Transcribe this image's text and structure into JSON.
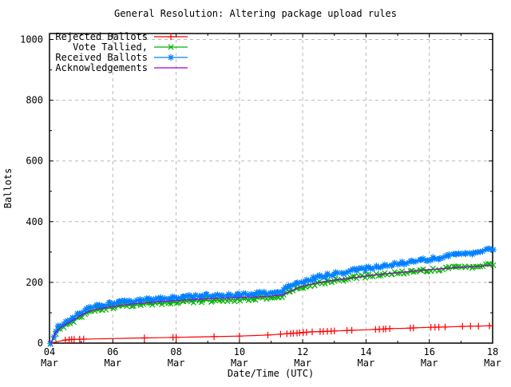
{
  "window": {
    "background": "#ffffff"
  },
  "chart_data": {
    "type": "line",
    "title": "General Resolution: Altering package upload rules",
    "xlabel": "Date/Time (UTC)",
    "ylabel": "Ballots",
    "xlim": [
      4,
      18
    ],
    "ylim": [
      0,
      1000
    ],
    "grid": true,
    "legend_position": "top-left",
    "colors": {
      "grid": "#b8b8b8",
      "border": "#000000",
      "background": "#ffffff"
    },
    "xticks": [
      {
        "day": 4,
        "label_day": "04",
        "label_month": "Mar"
      },
      {
        "day": 6,
        "label_day": "06",
        "label_month": "Mar"
      },
      {
        "day": 8,
        "label_day": "08",
        "label_month": "Mar"
      },
      {
        "day": 10,
        "label_day": "10",
        "label_month": "Mar"
      },
      {
        "day": 12,
        "label_day": "12",
        "label_month": "Mar"
      },
      {
        "day": 14,
        "label_day": "14",
        "label_month": "Mar"
      },
      {
        "day": 16,
        "label_day": "16",
        "label_month": "Mar"
      },
      {
        "day": 18,
        "label_day": "18",
        "label_month": "Mar"
      }
    ],
    "x_minor_days": [
      5,
      7,
      9,
      11,
      13,
      15,
      17
    ],
    "grid_x_days": [
      6,
      8,
      10,
      12,
      14,
      16
    ],
    "yticks": [
      0,
      200,
      400,
      600,
      800,
      1000
    ],
    "y_minor": [
      100,
      300,
      500,
      700,
      900
    ],
    "series": [
      {
        "name": "Rejected Ballots",
        "color": "#ff0000",
        "marker": "plus",
        "points": [
          [
            4.05,
            0
          ],
          [
            4.3,
            6
          ],
          [
            4.5,
            10
          ],
          [
            4.7,
            12
          ],
          [
            5.0,
            13
          ],
          [
            5.5,
            14
          ],
          [
            6.0,
            15
          ],
          [
            6.5,
            16
          ],
          [
            7.0,
            17
          ],
          [
            7.5,
            18
          ],
          [
            8.0,
            19
          ],
          [
            8.5,
            20
          ],
          [
            9.0,
            21
          ],
          [
            9.5,
            22
          ],
          [
            10.0,
            23
          ],
          [
            10.5,
            25
          ],
          [
            11.0,
            27
          ],
          [
            11.5,
            31
          ],
          [
            11.8,
            33
          ],
          [
            12.0,
            35
          ],
          [
            12.3,
            37
          ],
          [
            12.6,
            38
          ],
          [
            13.0,
            40
          ],
          [
            13.5,
            42
          ],
          [
            14.0,
            44
          ],
          [
            14.5,
            46
          ],
          [
            14.8,
            48
          ],
          [
            15.0,
            48
          ],
          [
            15.5,
            50
          ],
          [
            16.0,
            52
          ],
          [
            16.5,
            53
          ],
          [
            17.0,
            55
          ],
          [
            17.5,
            56
          ],
          [
            18.0,
            57
          ]
        ],
        "marker_days": [
          4.5,
          4.62,
          4.7,
          4.78,
          4.95,
          5.08,
          7.0,
          7.9,
          8.0,
          9.2,
          10.0,
          10.9,
          11.3,
          11.5,
          11.62,
          11.7,
          11.82,
          11.9,
          12.02,
          12.12,
          12.3,
          12.55,
          12.65,
          12.78,
          12.9,
          13.0,
          13.4,
          13.55,
          14.3,
          14.42,
          14.55,
          14.62,
          14.75,
          15.4,
          15.5,
          16.05,
          16.18,
          16.3,
          16.5,
          17.05,
          17.3,
          17.55,
          17.9
        ]
      },
      {
        "name": "Vote Tallied,",
        "color": "#00b400",
        "marker": "cross",
        "marker_step": 0.075,
        "points": [
          [
            4.05,
            1
          ],
          [
            4.1,
            10
          ],
          [
            4.15,
            22
          ],
          [
            4.2,
            33
          ],
          [
            4.3,
            45
          ],
          [
            4.4,
            52
          ],
          [
            4.5,
            58
          ],
          [
            4.6,
            63
          ],
          [
            4.7,
            68
          ],
          [
            4.8,
            75
          ],
          [
            4.9,
            82
          ],
          [
            5.0,
            88
          ],
          [
            5.1,
            94
          ],
          [
            5.2,
            99
          ],
          [
            5.3,
            103
          ],
          [
            5.5,
            108
          ],
          [
            5.7,
            112
          ],
          [
            6.0,
            117
          ],
          [
            6.3,
            121
          ],
          [
            6.6,
            124
          ],
          [
            7.0,
            128
          ],
          [
            7.4,
            131
          ],
          [
            7.8,
            134
          ],
          [
            8.0,
            135
          ],
          [
            8.3,
            137
          ],
          [
            8.6,
            139
          ],
          [
            9.0,
            140
          ],
          [
            9.5,
            142
          ],
          [
            10.0,
            144
          ],
          [
            10.5,
            147
          ],
          [
            11.0,
            150
          ],
          [
            11.2,
            152
          ],
          [
            11.35,
            156
          ],
          [
            11.5,
            163
          ],
          [
            11.7,
            173
          ],
          [
            11.9,
            181
          ],
          [
            12.0,
            185
          ],
          [
            12.2,
            191
          ],
          [
            12.5,
            197
          ],
          [
            12.8,
            202
          ],
          [
            13.0,
            206
          ],
          [
            13.3,
            210
          ],
          [
            13.6,
            214
          ],
          [
            14.0,
            220
          ],
          [
            14.3,
            224
          ],
          [
            14.6,
            227
          ],
          [
            15.0,
            231
          ],
          [
            15.3,
            234
          ],
          [
            15.6,
            237
          ],
          [
            16.0,
            241
          ],
          [
            16.3,
            244
          ],
          [
            16.6,
            246
          ],
          [
            17.0,
            249
          ],
          [
            17.3,
            252
          ],
          [
            17.6,
            254
          ],
          [
            18.0,
            258
          ]
        ]
      },
      {
        "name": "Received Ballots",
        "color": "#0080ff",
        "marker": "star",
        "marker_step": 0.075,
        "points": [
          [
            4.05,
            2
          ],
          [
            4.1,
            15
          ],
          [
            4.15,
            30
          ],
          [
            4.2,
            42
          ],
          [
            4.3,
            55
          ],
          [
            4.4,
            62
          ],
          [
            4.5,
            68
          ],
          [
            4.6,
            73
          ],
          [
            4.7,
            79
          ],
          [
            4.8,
            87
          ],
          [
            4.9,
            94
          ],
          [
            5.0,
            101
          ],
          [
            5.1,
            107
          ],
          [
            5.2,
            112
          ],
          [
            5.3,
            116
          ],
          [
            5.5,
            121
          ],
          [
            5.7,
            125
          ],
          [
            6.0,
            130
          ],
          [
            6.3,
            134
          ],
          [
            6.6,
            137
          ],
          [
            7.0,
            141
          ],
          [
            7.4,
            145
          ],
          [
            7.8,
            148
          ],
          [
            8.0,
            150
          ],
          [
            8.3,
            152
          ],
          [
            8.6,
            154
          ],
          [
            9.0,
            156
          ],
          [
            9.5,
            158
          ],
          [
            10.0,
            160
          ],
          [
            10.5,
            162
          ],
          [
            11.0,
            166
          ],
          [
            11.2,
            168
          ],
          [
            11.35,
            172
          ],
          [
            11.5,
            180
          ],
          [
            11.7,
            191
          ],
          [
            11.9,
            199
          ],
          [
            12.0,
            203
          ],
          [
            12.2,
            210
          ],
          [
            12.5,
            218
          ],
          [
            12.8,
            224
          ],
          [
            13.0,
            228
          ],
          [
            13.3,
            233
          ],
          [
            13.6,
            238
          ],
          [
            14.0,
            245
          ],
          [
            14.3,
            250
          ],
          [
            14.6,
            255
          ],
          [
            15.0,
            261
          ],
          [
            15.3,
            266
          ],
          [
            15.6,
            271
          ],
          [
            16.0,
            277
          ],
          [
            16.3,
            282
          ],
          [
            16.6,
            286
          ],
          [
            17.0,
            292
          ],
          [
            17.3,
            297
          ],
          [
            17.6,
            302
          ],
          [
            18.0,
            309
          ]
        ]
      },
      {
        "name": "Acknowledgements",
        "color": "#a000d0",
        "marker": "none",
        "points": [
          [
            4.05,
            1
          ],
          [
            4.2,
            36
          ],
          [
            4.4,
            56
          ],
          [
            4.6,
            67
          ],
          [
            4.8,
            79
          ],
          [
            5.0,
            92
          ],
          [
            5.2,
            103
          ],
          [
            5.5,
            112
          ],
          [
            6.0,
            121
          ],
          [
            6.5,
            128
          ],
          [
            7.0,
            132
          ],
          [
            7.5,
            137
          ],
          [
            8.0,
            140
          ],
          [
            8.5,
            143
          ],
          [
            9.0,
            146
          ],
          [
            9.5,
            148
          ],
          [
            10.0,
            150
          ],
          [
            10.5,
            152
          ],
          [
            11.0,
            155
          ],
          [
            11.35,
            159
          ],
          [
            11.5,
            166
          ],
          [
            11.8,
            180
          ],
          [
            12.0,
            188
          ],
          [
            12.3,
            195
          ],
          [
            12.6,
            201
          ],
          [
            13.0,
            208
          ],
          [
            13.5,
            214
          ],
          [
            14.0,
            221
          ],
          [
            14.5,
            227
          ],
          [
            15.0,
            232
          ],
          [
            15.5,
            237
          ],
          [
            16.0,
            242
          ],
          [
            16.5,
            246
          ],
          [
            17.0,
            250
          ],
          [
            17.5,
            253
          ],
          [
            18.0,
            256
          ]
        ]
      }
    ]
  }
}
